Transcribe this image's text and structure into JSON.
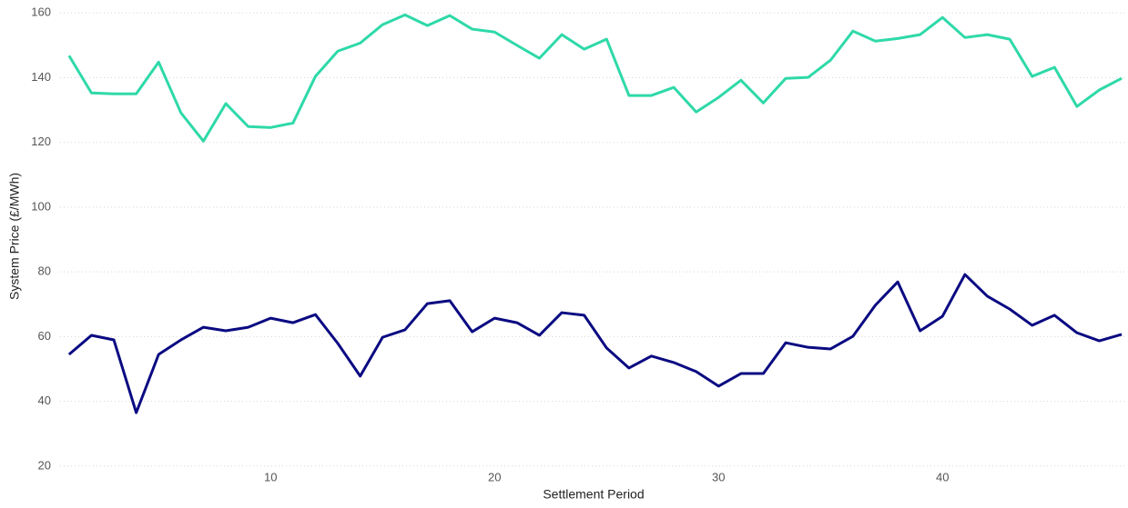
{
  "chart_data": {
    "type": "line",
    "xlabel": "Settlement Period",
    "ylabel": "System Price (£/MWh)",
    "x": [
      1,
      2,
      3,
      4,
      5,
      6,
      7,
      8,
      9,
      10,
      11,
      12,
      13,
      14,
      15,
      16,
      17,
      18,
      19,
      20,
      21,
      22,
      23,
      24,
      25,
      26,
      27,
      28,
      29,
      30,
      31,
      32,
      33,
      34,
      35,
      36,
      37,
      38,
      39,
      40,
      41,
      42,
      43,
      44,
      45,
      46,
      47,
      48
    ],
    "series": [
      {
        "color": "#2ed9a8",
        "values": [
          146.8,
          135.3,
          135,
          135,
          144.8,
          129.1,
          120.4,
          132,
          124.9,
          124.6,
          126,
          140.4,
          148.2,
          150.7,
          156.4,
          159.4,
          156.1,
          159.2,
          155,
          154.1,
          150,
          146,
          153.3,
          148.8,
          151.9,
          134.5,
          134.5,
          137,
          129.4,
          133.9,
          139.2,
          132.2,
          139.8,
          140.1,
          145.4,
          154.4,
          151.3,
          152.1,
          153.3,
          158.6,
          152.4,
          153.3,
          151.9,
          140.4,
          143.2,
          131.1,
          136.2,
          139.8
        ]
      },
      {
        "color": "#0a0a82",
        "values": [
          54.5,
          60.4,
          59,
          36.5,
          54.5,
          59,
          62.9,
          61.8,
          62.9,
          65.7,
          64.3,
          66.8,
          57.9,
          47.8,
          59.8,
          62.1,
          70.2,
          71.1,
          61.5,
          65.7,
          64.3,
          60.4,
          67.4,
          66.6,
          56.5,
          50.3,
          54,
          52,
          49.2,
          44.7,
          48.6,
          48.6,
          58.1,
          56.7,
          56.2,
          60.1,
          69.7,
          76.9,
          61.8,
          66.3,
          79.2,
          72.5,
          68.5,
          63.5,
          66.6,
          61.2,
          58.7,
          60.7
        ]
      }
    ],
    "xlim": [
      0.6,
      48.2
    ],
    "xticks": [
      10,
      20,
      30,
      40
    ],
    "ylim": [
      18,
      164
    ],
    "yticks": [
      20,
      40,
      60,
      80,
      100,
      120,
      140,
      160
    ],
    "grid": true
  }
}
